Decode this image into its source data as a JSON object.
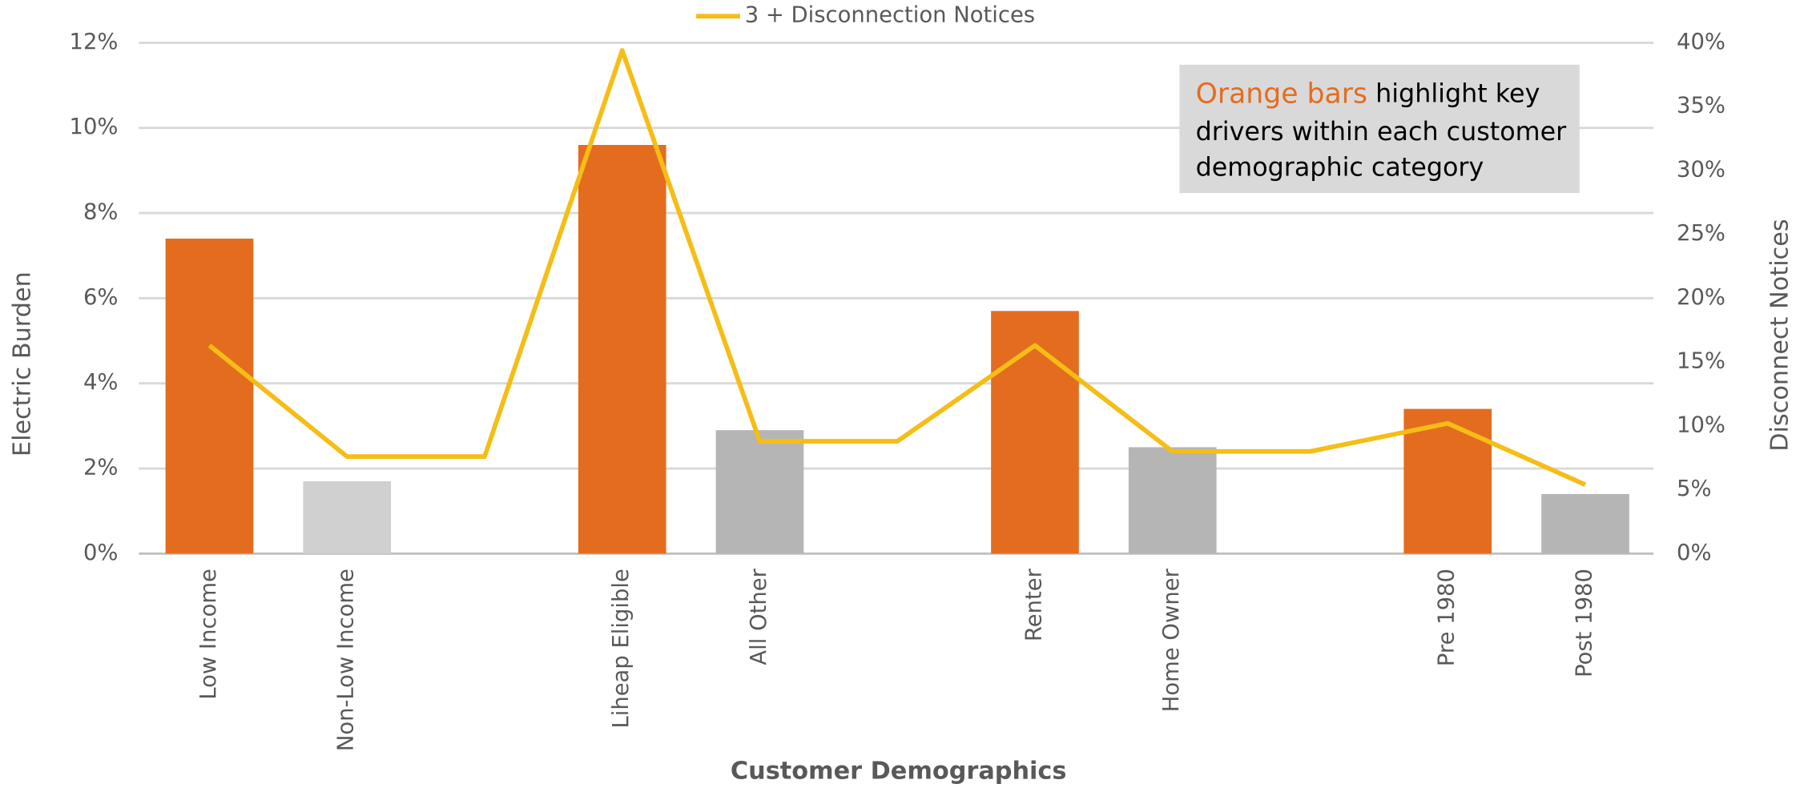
{
  "chart_data": {
    "type": "bar",
    "x_label": "Customer Demographics",
    "y_label": "Electric Burden",
    "y2_label": "Disconnect Notices",
    "categories": [
      "Low Income",
      "Non-Low Income",
      null,
      "Liheap Eligible",
      "All Other",
      null,
      "Renter",
      "Home Owner",
      null,
      "Pre 1980",
      "Post 1980"
    ],
    "series": [
      {
        "type": "bar",
        "colors": [
          "#e46c1f",
          "#d0d0d0",
          null,
          "#e46c1f",
          "#b5b5b5",
          null,
          "#e46c1f",
          "#b5b5b5",
          null,
          "#e46c1f",
          "#b5b5b5"
        ],
        "values": [
          7.4,
          1.7,
          null,
          9.6,
          2.9,
          null,
          5.7,
          2.5,
          null,
          3.4,
          1.4
        ]
      },
      {
        "type": "line",
        "name": "3 + Disconnection Notices",
        "axis": "y2",
        "color": "#f5bd16",
        "values": [
          16.3,
          7.6,
          7.6,
          39.4,
          8.8,
          8.8,
          16.3,
          8.0,
          8.0,
          10.2,
          5.4
        ]
      }
    ],
    "ylim": [
      0,
      12
    ],
    "yticks": [
      {
        "value": 0,
        "label": "0%"
      },
      {
        "value": 2,
        "label": "2%"
      },
      {
        "value": 4,
        "label": "4%"
      },
      {
        "value": 6,
        "label": "6%"
      },
      {
        "value": 8,
        "label": "8%"
      },
      {
        "value": 10,
        "label": "10%"
      },
      {
        "value": 12,
        "label": "12%"
      }
    ],
    "y2lim": [
      0,
      40
    ],
    "y2ticks": [
      {
        "value": 0,
        "label": "0%"
      },
      {
        "value": 5,
        "label": "5%"
      },
      {
        "value": 10,
        "label": "10%"
      },
      {
        "value": 15,
        "label": "15%"
      },
      {
        "value": 20,
        "label": "20%"
      },
      {
        "value": 25,
        "label": "25%"
      },
      {
        "value": 30,
        "label": "30%"
      },
      {
        "value": 35,
        "label": "35%"
      },
      {
        "value": 40,
        "label": "40%"
      }
    ],
    "grid": true,
    "legend": "top",
    "annotation": {
      "highlight": "Orange bars",
      "highlight_color": "#e46c1f",
      "lines": [
        "highlight key",
        "drivers within each customer",
        "demographic category"
      ]
    }
  }
}
